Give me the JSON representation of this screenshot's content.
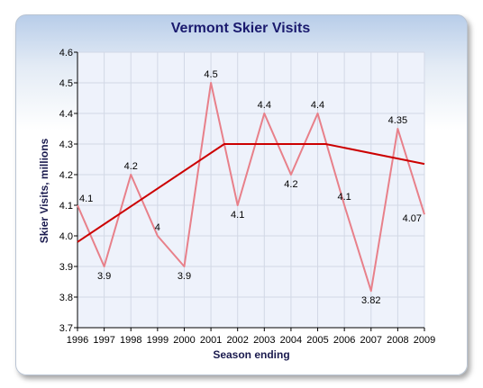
{
  "chart_data": {
    "type": "line",
    "title": "Vermont Skier Visits",
    "xlabel": "Season ending",
    "ylabel": "Skier Visits, millions",
    "ylim": [
      3.7,
      4.6
    ],
    "yticks": [
      "3.7",
      "3.8",
      "3.9",
      "4.0",
      "4.1",
      "4.2",
      "4.3",
      "4.4",
      "4.5",
      "4.6"
    ],
    "categories": [
      "1996",
      "1997",
      "1998",
      "1999",
      "2000",
      "2001",
      "2002",
      "2003",
      "2004",
      "2005",
      "2006",
      "2007",
      "2008",
      "2009"
    ],
    "grid": true,
    "series": [
      {
        "values": [
          4.1,
          3.9,
          4.2,
          4.0,
          3.9,
          4.5,
          4.1,
          4.4,
          4.2,
          4.4,
          4.1,
          3.82,
          4.35,
          4.07
        ],
        "labels": [
          "4.1",
          "3.9",
          "4.2",
          "4",
          "3.9",
          "4.5",
          "4.1",
          "4.4",
          "4.2",
          "4.4",
          "4.1",
          "3.82",
          "4.35",
          "4.07"
        ],
        "color": "#e8808a"
      }
    ],
    "trend_line": {
      "x": [
        1996,
        2001.5,
        2005.3,
        2009
      ],
      "y": [
        3.98,
        4.3,
        4.3,
        4.235
      ],
      "color": "#cc0000"
    },
    "colors": {
      "plot_background": "#eef2fb",
      "grid": "#d2d8e6",
      "axis": "#000000"
    }
  }
}
